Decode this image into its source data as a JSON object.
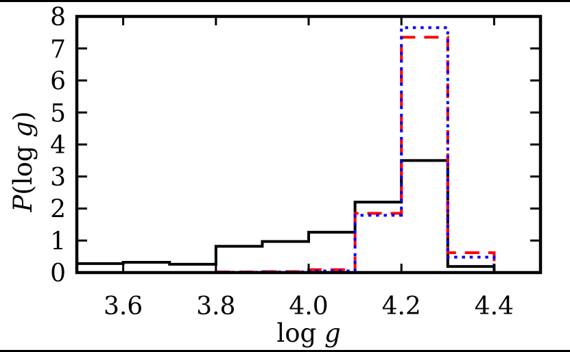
{
  "figure": {
    "background": "#ffffff",
    "border_color": "#000000",
    "colors": {
      "black_series": "#000000",
      "red_series": "#ff0000",
      "blue_series": "#0000ff"
    }
  },
  "chart_data": {
    "type": "histogram-step-line",
    "title": "",
    "xlabel": "log g",
    "xlabel_parts": [
      {
        "text": "log ",
        "italic": false
      },
      {
        "text": "g",
        "italic": true
      }
    ],
    "ylabel": "P(log g)",
    "ylabel_parts": [
      {
        "text": "P",
        "italic": true
      },
      {
        "text": "(log ",
        "italic": false
      },
      {
        "text": "g",
        "italic": true
      },
      {
        "text": ")",
        "italic": false
      }
    ],
    "xlim": [
      3.5,
      4.5
    ],
    "ylim": [
      0,
      8
    ],
    "x_ticks": [
      3.6,
      3.8,
      4.0,
      4.2,
      4.4
    ],
    "x_tick_labels": [
      "3.6",
      "3.8",
      "4.0",
      "4.2",
      "4.4"
    ],
    "y_ticks": [
      0,
      1,
      2,
      3,
      4,
      5,
      6,
      7,
      8
    ],
    "y_tick_labels": [
      "0",
      "1",
      "2",
      "3",
      "4",
      "5",
      "6",
      "7",
      "8"
    ],
    "grid": false,
    "legend": "none",
    "bin_edges": [
      3.5,
      3.6,
      3.7,
      3.8,
      3.9,
      4.0,
      4.1,
      4.2,
      4.3,
      4.4,
      4.5
    ],
    "series": [
      {
        "name": "black-solid",
        "color": "#000000",
        "line_style": "solid",
        "line_width": 4,
        "values": [
          0.28,
          0.32,
          0.26,
          0.82,
          0.97,
          1.26,
          2.2,
          3.5,
          0.19,
          0
        ]
      },
      {
        "name": "red-long-dash",
        "color": "#ff0000",
        "line_style": "dashed",
        "line_width": 4,
        "values": [
          0,
          0,
          0,
          0.02,
          0.03,
          0.09,
          1.85,
          7.35,
          0.62,
          0
        ]
      },
      {
        "name": "blue-dotted",
        "color": "#0000ff",
        "line_style": "dotted",
        "line_width": 4,
        "values": [
          0,
          0,
          0,
          0.01,
          0.02,
          0.05,
          1.79,
          7.65,
          0.48,
          0
        ]
      }
    ]
  }
}
